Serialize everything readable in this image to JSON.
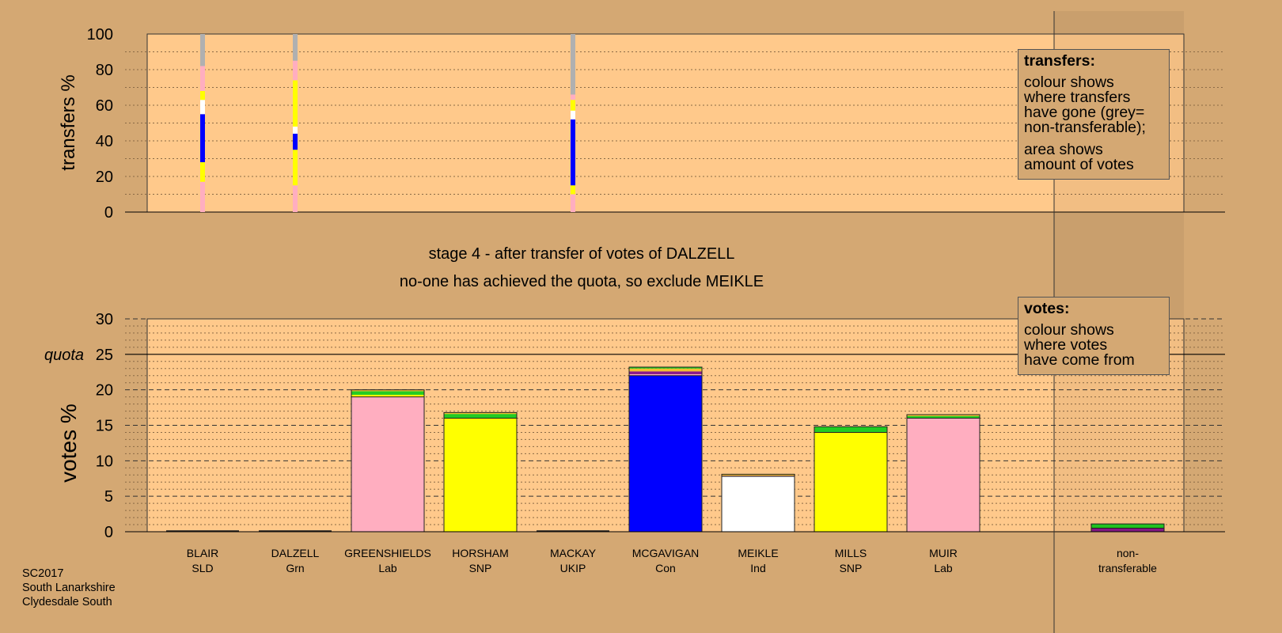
{
  "colors": {
    "background": "#d4a873",
    "plot_bg": "#ffc98b",
    "SLD": "#f0c030",
    "Grn": "#22cc22",
    "Lab": "#ffaec0",
    "SNP": "#ffff00",
    "UKIP": "#8b1a8b",
    "Con": "#0000ff",
    "Ind": "#ffffff",
    "nontransferable": "#b0b0b0"
  },
  "header": {
    "stage": "stage 4 - after transfer of votes of DALZELL",
    "note": "no-one has achieved the quota, so exclude MEIKLE"
  },
  "legend_transfers": {
    "title": "transfers:",
    "lines_a": [
      "colour shows",
      "where transfers",
      "have gone (grey=",
      "non-transferable);"
    ],
    "lines_b": [
      "area shows",
      "amount of votes"
    ]
  },
  "legend_votes": {
    "title": "votes:",
    "lines": [
      "colour shows",
      "where votes",
      "have come from"
    ]
  },
  "footer": {
    "line1": "SC2017",
    "line2": "South Lanarkshire",
    "line3": "Clydesdale South"
  },
  "chart_data": [
    {
      "type": "bar",
      "subtype": "stacked transfer strips",
      "ylabel": "transfers %",
      "ylim": [
        0,
        100
      ],
      "yticks": [
        0,
        20,
        40,
        60,
        80,
        100
      ],
      "grid": true,
      "candidates": [
        "BLAIR",
        "DALZELL",
        "GREENSHIELDS",
        "HORSHAM",
        "MACKAY",
        "MCGAVIGAN",
        "MEIKLE",
        "MILLS",
        "MUIR"
      ],
      "transfers": [
        {
          "from": "BLAIR",
          "segments": [
            {
              "to": "Lab",
              "color": "#ffaec0",
              "value": 17
            },
            {
              "to": "SNP",
              "color": "#ffff00",
              "value": 11
            },
            {
              "to": "Con",
              "color": "#0000ff",
              "value": 27
            },
            {
              "to": "Ind",
              "color": "#ffffff",
              "value": 8
            },
            {
              "to": "SNP",
              "color": "#ffff00",
              "value": 5
            },
            {
              "to": "Lab",
              "color": "#ffaec0",
              "value": 14
            },
            {
              "to": "non-transferable",
              "color": "#b0b0b0",
              "value": 18
            }
          ]
        },
        {
          "from": "DALZELL",
          "segments": [
            {
              "to": "Lab",
              "color": "#ffaec0",
              "value": 15
            },
            {
              "to": "SNP",
              "color": "#ffff00",
              "value": 20
            },
            {
              "to": "Con",
              "color": "#0000ff",
              "value": 9
            },
            {
              "to": "Ind",
              "color": "#ffffff",
              "value": 4
            },
            {
              "to": "SNP",
              "color": "#ffff00",
              "value": 26
            },
            {
              "to": "Lab",
              "color": "#ffaec0",
              "value": 11
            },
            {
              "to": "non-transferable",
              "color": "#b0b0b0",
              "value": 15
            }
          ]
        },
        {
          "from": "MACKAY",
          "segments": [
            {
              "to": "Lab",
              "color": "#ffaec0",
              "value": 10
            },
            {
              "to": "SNP",
              "color": "#ffff00",
              "value": 5
            },
            {
              "to": "Con",
              "color": "#0000ff",
              "value": 37
            },
            {
              "to": "Ind",
              "color": "#ffffff",
              "value": 5
            },
            {
              "to": "SNP",
              "color": "#ffff00",
              "value": 6
            },
            {
              "to": "Lab",
              "color": "#ffaec0",
              "value": 3
            },
            {
              "to": "non-transferable",
              "color": "#b0b0b0",
              "value": 34
            }
          ]
        }
      ]
    },
    {
      "type": "bar",
      "subtype": "stacked",
      "ylabel": "votes %",
      "ylim": [
        0,
        30
      ],
      "yticks": [
        0,
        5,
        10,
        15,
        20,
        25,
        30
      ],
      "quota": 25,
      "quota_label": "quota",
      "grid": true,
      "categories": [
        {
          "name": "BLAIR",
          "party": "SLD"
        },
        {
          "name": "DALZELL",
          "party": "Grn"
        },
        {
          "name": "GREENSHIELDS",
          "party": "Lab"
        },
        {
          "name": "HORSHAM",
          "party": "SNP"
        },
        {
          "name": "MACKAY",
          "party": "UKIP"
        },
        {
          "name": "MCGAVIGAN",
          "party": "Con"
        },
        {
          "name": "MEIKLE",
          "party": "Ind"
        },
        {
          "name": "MILLS",
          "party": "SNP"
        },
        {
          "name": "MUIR",
          "party": "Lab"
        },
        {
          "name": "non-",
          "party": "transferable"
        }
      ],
      "stacks": [
        [],
        [],
        [
          {
            "from": "Lab",
            "color": "#ffaec0",
            "value": 19.0
          },
          {
            "from": "SNP",
            "color": "#ffff00",
            "value": 0.3
          },
          {
            "from": "Grn",
            "color": "#22cc22",
            "value": 0.5
          },
          {
            "from": "SLD",
            "color": "#f0c030",
            "value": 0.2
          }
        ],
        [
          {
            "from": "SNP",
            "color": "#ffff00",
            "value": 16.0
          },
          {
            "from": "Grn",
            "color": "#22cc22",
            "value": 0.6
          },
          {
            "from": "SLD",
            "color": "#f0c030",
            "value": 0.2
          }
        ],
        [],
        [
          {
            "from": "Con",
            "color": "#0000ff",
            "value": 22.0
          },
          {
            "from": "Lab",
            "color": "#ffaec0",
            "value": 0.2
          },
          {
            "from": "UKIP",
            "color": "#8b1a8b",
            "value": 0.4
          },
          {
            "from": "SLD",
            "color": "#f0c030",
            "value": 0.4
          },
          {
            "from": "Grn",
            "color": "#22cc22",
            "value": 0.2
          }
        ],
        [
          {
            "from": "Ind",
            "color": "#ffffff",
            "value": 7.8
          },
          {
            "from": "UKIP",
            "color": "#8b1a8b",
            "value": 0.1
          },
          {
            "from": "SLD",
            "color": "#f0c030",
            "value": 0.2
          }
        ],
        [
          {
            "from": "SNP",
            "color": "#ffff00",
            "value": 14.0
          },
          {
            "from": "Grn",
            "color": "#22cc22",
            "value": 0.8
          }
        ],
        [
          {
            "from": "Lab",
            "color": "#ffaec0",
            "value": 16.0
          },
          {
            "from": "Grn",
            "color": "#22cc22",
            "value": 0.3
          },
          {
            "from": "SLD",
            "color": "#f0c030",
            "value": 0.2
          }
        ],
        [
          {
            "from": "UKIP",
            "color": "#8b1a8b",
            "value": 0.5
          },
          {
            "from": "Grn",
            "color": "#22cc22",
            "value": 0.6
          }
        ]
      ]
    }
  ]
}
